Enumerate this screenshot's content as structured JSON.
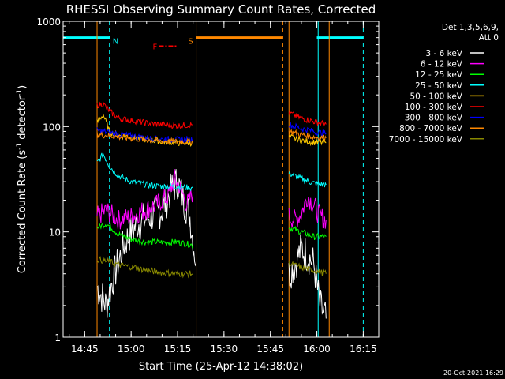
{
  "chart_data": {
    "type": "line",
    "title": "RHESSI Observing Summary Count Rates, Corrected",
    "xlabel": "Start Time (25-Apr-12 14:38:02)",
    "ylabel": "Corrected Count Rate (s",
    "ylabel_sup1": "-1",
    "ylabel_mid": " detector",
    "ylabel_sup2": "-1",
    "ylabel_end": ")",
    "y_scale": "log",
    "ylim": [
      1,
      1000
    ],
    "xlim": [
      "14:38:02",
      "16:20:00"
    ],
    "x_ticks": [
      "14:45",
      "15:00",
      "15:15",
      "15:30",
      "15:45",
      "16:00",
      "16:15"
    ],
    "y_ticks": [
      "1",
      "10",
      "100",
      "1000"
    ],
    "legend": {
      "placement": "right",
      "header1": "Det 1,3,5,6,9,",
      "header2": "Att 0",
      "entries": [
        {
          "label": "3 - 6 keV",
          "color": "#ffffff"
        },
        {
          "label": "6 - 12 keV",
          "color": "#ff00ff"
        },
        {
          "label": "12 - 25 keV",
          "color": "#00ff00"
        },
        {
          "label": "25 - 50 keV",
          "color": "#00ffff"
        },
        {
          "label": "50 - 100 keV",
          "color": "#ffcc00"
        },
        {
          "label": "100 - 300 keV",
          "color": "#ff0000"
        },
        {
          "label": "300 - 800 keV",
          "color": "#0000ff"
        },
        {
          "label": "800 - 7000 keV",
          "color": "#ff8800"
        },
        {
          "label": "7000 - 15000 keV",
          "color": "#888800"
        }
      ]
    },
    "markers": [
      {
        "label": "N",
        "color": "#00ffff",
        "start": "14:38:02",
        "end": "14:53:00"
      },
      {
        "label": "S",
        "color": "#ff8800",
        "start": "15:21:00",
        "end": "15:49:00"
      },
      {
        "label": "F",
        "color": "#ff0000",
        "start": "15:09:00",
        "end": "15:15:00"
      },
      {
        "label": "",
        "color": "#00ffff",
        "start": "16:00:00",
        "end": "16:15:00"
      }
    ],
    "intervals": [
      {
        "start": "14:49:00",
        "end": "15:21:00"
      },
      {
        "start": "15:51:00",
        "end": "16:04:00"
      }
    ],
    "series": [
      {
        "name": "3 - 6 keV",
        "color": "#ffffff",
        "x": [
          "14:49:00",
          "14:52:00",
          "14:54:00",
          "14:58:00",
          "15:02:00",
          "15:06:00",
          "15:10:00",
          "15:13:00",
          "15:15:00",
          "15:17:00",
          "15:19:00",
          "15:21:00",
          "15:51:00",
          "15:53:00",
          "15:55:00",
          "15:57:00",
          "15:59:00",
          "16:01:00",
          "16:03:00"
        ],
        "y": [
          3,
          2,
          3.5,
          8,
          12,
          14,
          16,
          25,
          30,
          20,
          14,
          5,
          4,
          5,
          7,
          6,
          5,
          2,
          1.5
        ]
      },
      {
        "name": "6 - 12 keV",
        "color": "#ff00ff",
        "x": [
          "14:49:00",
          "14:52:00",
          "14:56:00",
          "15:00:00",
          "15:04:00",
          "15:08:00",
          "15:12:00",
          "15:14:00",
          "15:16:00",
          "15:18:00",
          "15:20:00",
          "15:51:00",
          "15:53:00",
          "15:55:00",
          "15:57:00",
          "15:59:00",
          "16:01:00",
          "16:03:00"
        ],
        "y": [
          14,
          16,
          13,
          14,
          16,
          18,
          22,
          32,
          26,
          18,
          24,
          14,
          13,
          15,
          22,
          18,
          14,
          13
        ]
      },
      {
        "name": "12 - 25 keV",
        "color": "#00ff00",
        "x": [
          "14:49:00",
          "14:52:00",
          "14:56:00",
          "15:00:00",
          "15:05:00",
          "15:10:00",
          "15:15:00",
          "15:20:00",
          "15:51:00",
          "15:55:00",
          "15:59:00",
          "16:03:00"
        ],
        "y": [
          11,
          12,
          9.5,
          8.5,
          8,
          8,
          8,
          7.5,
          11,
          10,
          9,
          9
        ]
      },
      {
        "name": "25 - 50 keV",
        "color": "#00ffff",
        "x": [
          "14:49:00",
          "14:51:00",
          "14:53:00",
          "14:56:00",
          "15:00:00",
          "15:05:00",
          "15:10:00",
          "15:15:00",
          "15:20:00",
          "15:51:00",
          "15:55:00",
          "15:59:00",
          "16:03:00"
        ],
        "y": [
          45,
          55,
          42,
          34,
          30,
          28,
          27,
          27,
          26,
          36,
          32,
          29,
          28
        ]
      },
      {
        "name": "50 - 100 keV",
        "color": "#ffcc00",
        "x": [
          "14:49:00",
          "14:51:00",
          "14:53:00",
          "14:56:00",
          "15:00:00",
          "15:05:00",
          "15:10:00",
          "15:15:00",
          "15:20:00",
          "15:51:00",
          "15:55:00",
          "15:59:00",
          "16:03:00"
        ],
        "y": [
          110,
          130,
          90,
          82,
          80,
          75,
          72,
          70,
          70,
          80,
          74,
          71,
          70
        ]
      },
      {
        "name": "100 - 300 keV",
        "color": "#ff0000",
        "x": [
          "14:49:00",
          "14:51:00",
          "14:53:00",
          "14:56:00",
          "15:00:00",
          "15:05:00",
          "15:10:00",
          "15:15:00",
          "15:20:00",
          "15:51:00",
          "15:55:00",
          "15:59:00",
          "16:03:00"
        ],
        "y": [
          160,
          165,
          140,
          120,
          115,
          108,
          104,
          102,
          104,
          135,
          120,
          112,
          105
        ]
      },
      {
        "name": "300 - 800 keV",
        "color": "#0000ff",
        "x": [
          "14:49:00",
          "14:53:00",
          "14:57:00",
          "15:01:00",
          "15:05:00",
          "15:10:00",
          "15:15:00",
          "15:20:00",
          "15:51:00",
          "15:55:00",
          "15:59:00",
          "16:03:00"
        ],
        "y": [
          92,
          88,
          84,
          81,
          78,
          76,
          75,
          76,
          105,
          96,
          90,
          86
        ]
      },
      {
        "name": "800 - 7000 keV",
        "color": "#ff8800",
        "x": [
          "14:49:00",
          "14:53:00",
          "14:57:00",
          "15:01:00",
          "15:05:00",
          "15:10:00",
          "15:15:00",
          "15:20:00",
          "15:51:00",
          "15:55:00",
          "15:59:00",
          "16:03:00"
        ],
        "y": [
          84,
          82,
          79,
          77,
          75,
          73,
          72,
          72,
          90,
          84,
          80,
          78
        ]
      },
      {
        "name": "7000 - 15000 keV",
        "color": "#888800",
        "x": [
          "14:49:00",
          "14:53:00",
          "14:57:00",
          "15:01:00",
          "15:05:00",
          "15:10:00",
          "15:15:00",
          "15:20:00",
          "15:51:00",
          "15:55:00",
          "15:59:00",
          "16:03:00"
        ],
        "y": [
          5.5,
          5.2,
          4.8,
          4.6,
          4.3,
          4.1,
          4.0,
          4.0,
          5.0,
          4.6,
          4.3,
          4.0
        ]
      }
    ]
  },
  "footer": {
    "timestamp": "20-Oct-2021 16:29"
  }
}
